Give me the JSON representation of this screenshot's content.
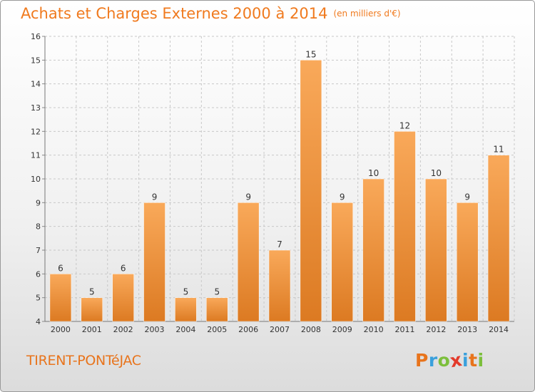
{
  "title": "Achats et Charges Externes 2000 à 2014",
  "unit_note": "(en milliers d'€)",
  "commune": "TIRENT-PONTéJAC",
  "logo": {
    "letters": [
      "P",
      "r",
      "o",
      "x",
      "i",
      "t",
      "i"
    ],
    "colors": [
      "#e8741c",
      "#3aa0dc",
      "#7cbf3c",
      "#e33a2b",
      "#3aa0dc",
      "#e8741c",
      "#7cbf3c"
    ]
  },
  "colors": {
    "title": "#f07a1e",
    "bar_top": "#f9a95a",
    "bar_bottom": "#dc7a22",
    "grid": "#c8c8c8",
    "axis_text": "#333333"
  },
  "chart_data": {
    "type": "bar",
    "categories": [
      "2000",
      "2001",
      "2002",
      "2003",
      "2004",
      "2005",
      "2006",
      "2007",
      "2008",
      "2009",
      "2010",
      "2011",
      "2012",
      "2013",
      "2014"
    ],
    "values": [
      6,
      5,
      6,
      9,
      5,
      5,
      9,
      7,
      15,
      9,
      10,
      12,
      10,
      9,
      11
    ],
    "ylim": [
      4,
      16
    ],
    "yticks": [
      4,
      5,
      6,
      7,
      8,
      9,
      10,
      11,
      12,
      13,
      14,
      15,
      16
    ],
    "grid": true,
    "data_labels": true
  }
}
